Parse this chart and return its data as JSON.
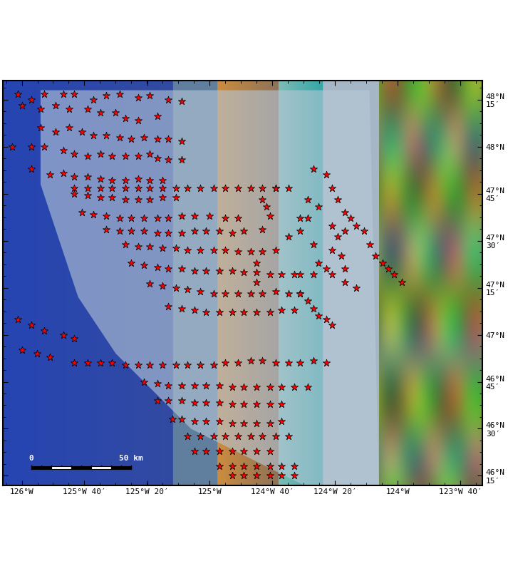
{
  "lon_min": -126.1,
  "lon_max": -123.55,
  "lat_min": 46.2,
  "lat_max": 48.35,
  "xticks": [
    -126,
    -125.667,
    -125.333,
    -125,
    -124.667,
    -124.333,
    -124,
    -123.667
  ],
  "xtick_labels": [
    "126°W",
    "125°W 40′",
    "125°W 20′",
    "125°W",
    "124°W 40′",
    "124°W 20′",
    "124°W",
    "123°W 40′"
  ],
  "yticks": [
    46.25,
    46.5,
    46.75,
    47.0,
    47.25,
    47.5,
    47.75,
    48.0,
    48.25
  ],
  "ytick_labels": [
    "46°N\n15′",
    "46°N\n30′",
    "46°N\n45′",
    "47°N",
    "47°N\n15′",
    "47°N\n30′",
    "47°N\n45′",
    "48°N",
    "48°N\n15′"
  ],
  "background_ocean": "#4a6fa5",
  "background_land": "#8faa7c",
  "star_color_face": "#ff0000",
  "star_color_edge": "#000000",
  "star_size": 8,
  "scalebar_lon": [
    -125.92,
    -125.55
  ],
  "scalebar_lat": 46.34,
  "bubble_plumes": [
    [
      -126.02,
      48.28
    ],
    [
      -125.95,
      48.25
    ],
    [
      -125.88,
      48.28
    ],
    [
      -125.78,
      48.28
    ],
    [
      -125.72,
      48.28
    ],
    [
      -125.62,
      48.25
    ],
    [
      -125.55,
      48.27
    ],
    [
      -125.48,
      48.28
    ],
    [
      -125.38,
      48.26
    ],
    [
      -125.32,
      48.27
    ],
    [
      -125.22,
      48.25
    ],
    [
      -125.15,
      48.24
    ],
    [
      -126.0,
      48.22
    ],
    [
      -125.9,
      48.2
    ],
    [
      -125.82,
      48.22
    ],
    [
      -125.75,
      48.2
    ],
    [
      -125.65,
      48.2
    ],
    [
      -125.58,
      48.18
    ],
    [
      -125.5,
      48.18
    ],
    [
      -125.45,
      48.15
    ],
    [
      -125.38,
      48.14
    ],
    [
      -125.28,
      48.16
    ],
    [
      -125.9,
      48.1
    ],
    [
      -125.82,
      48.08
    ],
    [
      -125.75,
      48.1
    ],
    [
      -125.68,
      48.08
    ],
    [
      -125.62,
      48.06
    ],
    [
      -125.55,
      48.06
    ],
    [
      -125.48,
      48.05
    ],
    [
      -125.42,
      48.04
    ],
    [
      -125.35,
      48.05
    ],
    [
      -125.28,
      48.04
    ],
    [
      -125.22,
      48.04
    ],
    [
      -125.15,
      48.03
    ],
    [
      -126.05,
      48.0
    ],
    [
      -125.95,
      48.0
    ],
    [
      -125.88,
      48.0
    ],
    [
      -125.78,
      47.98
    ],
    [
      -125.72,
      47.96
    ],
    [
      -125.65,
      47.95
    ],
    [
      -125.58,
      47.96
    ],
    [
      -125.52,
      47.95
    ],
    [
      -125.45,
      47.95
    ],
    [
      -125.38,
      47.95
    ],
    [
      -125.32,
      47.96
    ],
    [
      -125.28,
      47.94
    ],
    [
      -125.22,
      47.93
    ],
    [
      -125.15,
      47.93
    ],
    [
      -125.95,
      47.88
    ],
    [
      -125.85,
      47.85
    ],
    [
      -125.78,
      47.86
    ],
    [
      -125.72,
      47.84
    ],
    [
      -125.65,
      47.84
    ],
    [
      -125.58,
      47.83
    ],
    [
      -125.52,
      47.82
    ],
    [
      -125.45,
      47.82
    ],
    [
      -125.38,
      47.83
    ],
    [
      -125.32,
      47.82
    ],
    [
      -125.25,
      47.82
    ],
    [
      -125.72,
      47.75
    ],
    [
      -125.65,
      47.74
    ],
    [
      -125.58,
      47.73
    ],
    [
      -125.52,
      47.73
    ],
    [
      -125.45,
      47.72
    ],
    [
      -125.38,
      47.72
    ],
    [
      -125.32,
      47.72
    ],
    [
      -125.25,
      47.73
    ],
    [
      -125.18,
      47.73
    ],
    [
      -125.68,
      47.65
    ],
    [
      -125.62,
      47.64
    ],
    [
      -125.55,
      47.63
    ],
    [
      -125.48,
      47.62
    ],
    [
      -125.42,
      47.62
    ],
    [
      -125.35,
      47.62
    ],
    [
      -125.28,
      47.62
    ],
    [
      -125.22,
      47.62
    ],
    [
      -125.15,
      47.63
    ],
    [
      -125.08,
      47.63
    ],
    [
      -125.0,
      47.63
    ],
    [
      -124.92,
      47.62
    ],
    [
      -124.85,
      47.62
    ],
    [
      -125.55,
      47.56
    ],
    [
      -125.48,
      47.55
    ],
    [
      -125.42,
      47.55
    ],
    [
      -125.35,
      47.55
    ],
    [
      -125.28,
      47.54
    ],
    [
      -125.22,
      47.54
    ],
    [
      -125.15,
      47.54
    ],
    [
      -125.08,
      47.55
    ],
    [
      -125.02,
      47.55
    ],
    [
      -124.95,
      47.55
    ],
    [
      -124.88,
      47.54
    ],
    [
      -124.82,
      47.55
    ],
    [
      -125.45,
      47.48
    ],
    [
      -125.38,
      47.47
    ],
    [
      -125.32,
      47.47
    ],
    [
      -125.25,
      47.46
    ],
    [
      -125.18,
      47.46
    ],
    [
      -125.12,
      47.45
    ],
    [
      -125.05,
      47.45
    ],
    [
      -124.98,
      47.45
    ],
    [
      -124.92,
      47.45
    ],
    [
      -124.85,
      47.44
    ],
    [
      -124.78,
      47.44
    ],
    [
      -124.72,
      47.44
    ],
    [
      -124.65,
      47.45
    ],
    [
      -125.42,
      47.38
    ],
    [
      -125.35,
      47.37
    ],
    [
      -125.28,
      47.36
    ],
    [
      -125.22,
      47.35
    ],
    [
      -125.15,
      47.35
    ],
    [
      -125.08,
      47.34
    ],
    [
      -125.02,
      47.34
    ],
    [
      -124.95,
      47.34
    ],
    [
      -124.88,
      47.34
    ],
    [
      -124.82,
      47.33
    ],
    [
      -124.75,
      47.33
    ],
    [
      -124.68,
      47.32
    ],
    [
      -124.62,
      47.32
    ],
    [
      -125.32,
      47.27
    ],
    [
      -125.25,
      47.26
    ],
    [
      -125.18,
      47.25
    ],
    [
      -125.12,
      47.24
    ],
    [
      -125.05,
      47.23
    ],
    [
      -124.98,
      47.22
    ],
    [
      -124.92,
      47.22
    ],
    [
      -124.85,
      47.22
    ],
    [
      -124.78,
      47.22
    ],
    [
      -124.72,
      47.22
    ],
    [
      -124.65,
      47.23
    ],
    [
      -124.58,
      47.22
    ],
    [
      -124.52,
      47.22
    ],
    [
      -125.22,
      47.15
    ],
    [
      -125.15,
      47.14
    ],
    [
      -125.08,
      47.13
    ],
    [
      -125.02,
      47.12
    ],
    [
      -124.95,
      47.12
    ],
    [
      -124.88,
      47.12
    ],
    [
      -124.82,
      47.12
    ],
    [
      -124.75,
      47.12
    ],
    [
      -124.68,
      47.12
    ],
    [
      -124.62,
      47.13
    ],
    [
      -124.55,
      47.13
    ],
    [
      -124.75,
      47.38
    ],
    [
      -124.75,
      47.28
    ],
    [
      -124.55,
      47.32
    ],
    [
      -124.72,
      47.56
    ],
    [
      -124.68,
      47.63
    ],
    [
      -124.7,
      47.68
    ],
    [
      -124.72,
      47.72
    ],
    [
      -124.3,
      47.42
    ],
    [
      -124.35,
      47.45
    ],
    [
      -124.28,
      47.35
    ],
    [
      -124.32,
      47.52
    ],
    [
      -124.58,
      47.52
    ],
    [
      -124.52,
      47.62
    ],
    [
      -124.48,
      47.72
    ],
    [
      -124.45,
      47.48
    ],
    [
      -124.42,
      47.38
    ],
    [
      -124.38,
      47.35
    ],
    [
      -126.02,
      47.08
    ],
    [
      -125.95,
      47.05
    ],
    [
      -125.88,
      47.02
    ],
    [
      -125.78,
      47.0
    ],
    [
      -125.72,
      46.98
    ],
    [
      -126.0,
      46.92
    ],
    [
      -125.92,
      46.9
    ],
    [
      -125.85,
      46.88
    ],
    [
      -125.72,
      46.85
    ],
    [
      -125.65,
      46.85
    ],
    [
      -125.58,
      46.85
    ],
    [
      -125.52,
      46.85
    ],
    [
      -125.45,
      46.84
    ],
    [
      -125.38,
      46.84
    ],
    [
      -125.32,
      46.84
    ],
    [
      -125.25,
      46.84
    ],
    [
      -125.18,
      46.84
    ],
    [
      -125.12,
      46.84
    ],
    [
      -125.05,
      46.84
    ],
    [
      -124.98,
      46.84
    ],
    [
      -124.92,
      46.85
    ],
    [
      -124.85,
      46.85
    ],
    [
      -124.78,
      46.86
    ],
    [
      -124.72,
      46.86
    ],
    [
      -124.65,
      46.85
    ],
    [
      -124.58,
      46.85
    ],
    [
      -124.52,
      46.85
    ],
    [
      -124.45,
      46.86
    ],
    [
      -124.38,
      46.85
    ],
    [
      -125.35,
      46.75
    ],
    [
      -125.28,
      46.74
    ],
    [
      -125.22,
      46.73
    ],
    [
      -125.15,
      46.73
    ],
    [
      -125.08,
      46.73
    ],
    [
      -125.02,
      46.73
    ],
    [
      -124.95,
      46.73
    ],
    [
      -124.88,
      46.72
    ],
    [
      -124.82,
      46.72
    ],
    [
      -124.75,
      46.72
    ],
    [
      -124.68,
      46.72
    ],
    [
      -124.62,
      46.72
    ],
    [
      -124.55,
      46.72
    ],
    [
      -124.48,
      46.72
    ],
    [
      -125.28,
      46.65
    ],
    [
      -125.22,
      46.65
    ],
    [
      -125.15,
      46.65
    ],
    [
      -125.08,
      46.64
    ],
    [
      -125.02,
      46.64
    ],
    [
      -124.95,
      46.64
    ],
    [
      -124.88,
      46.63
    ],
    [
      -124.82,
      46.63
    ],
    [
      -124.75,
      46.63
    ],
    [
      -124.68,
      46.63
    ],
    [
      -124.62,
      46.63
    ],
    [
      -125.2,
      46.55
    ],
    [
      -125.15,
      46.55
    ],
    [
      -125.08,
      46.54
    ],
    [
      -125.02,
      46.54
    ],
    [
      -124.95,
      46.54
    ],
    [
      -124.88,
      46.53
    ],
    [
      -124.82,
      46.53
    ],
    [
      -124.75,
      46.53
    ],
    [
      -124.68,
      46.53
    ],
    [
      -124.62,
      46.54
    ],
    [
      -125.12,
      46.46
    ],
    [
      -125.05,
      46.46
    ],
    [
      -124.98,
      46.46
    ],
    [
      -124.92,
      46.46
    ],
    [
      -124.85,
      46.46
    ],
    [
      -124.78,
      46.46
    ],
    [
      -124.72,
      46.46
    ],
    [
      -124.65,
      46.46
    ],
    [
      -124.58,
      46.46
    ],
    [
      -125.08,
      46.38
    ],
    [
      -125.02,
      46.38
    ],
    [
      -124.95,
      46.38
    ],
    [
      -124.88,
      46.38
    ],
    [
      -124.82,
      46.38
    ],
    [
      -124.75,
      46.38
    ],
    [
      -124.68,
      46.38
    ],
    [
      -124.95,
      46.3
    ],
    [
      -124.88,
      46.3
    ],
    [
      -124.82,
      46.3
    ],
    [
      -124.75,
      46.3
    ],
    [
      -124.68,
      46.3
    ],
    [
      -124.62,
      46.3
    ],
    [
      -124.55,
      46.3
    ],
    [
      -124.88,
      46.25
    ],
    [
      -124.82,
      46.25
    ],
    [
      -124.75,
      46.25
    ],
    [
      -124.68,
      46.25
    ],
    [
      -124.62,
      46.25
    ],
    [
      -124.55,
      46.25
    ],
    [
      -124.65,
      47.78
    ],
    [
      -124.58,
      47.78
    ],
    [
      -124.52,
      47.55
    ],
    [
      -124.48,
      47.62
    ],
    [
      -124.42,
      47.68
    ],
    [
      -124.52,
      47.32
    ],
    [
      -124.45,
      47.32
    ],
    [
      -124.35,
      47.32
    ],
    [
      -124.28,
      47.28
    ],
    [
      -124.22,
      47.25
    ],
    [
      -124.28,
      47.55
    ],
    [
      -124.35,
      47.58
    ],
    [
      -124.45,
      47.88
    ],
    [
      -124.38,
      47.85
    ],
    [
      -124.35,
      47.78
    ],
    [
      -124.32,
      47.72
    ],
    [
      -124.28,
      47.65
    ],
    [
      -124.25,
      47.62
    ],
    [
      -124.22,
      47.58
    ],
    [
      -124.18,
      47.55
    ],
    [
      -124.15,
      47.48
    ],
    [
      -124.12,
      47.42
    ],
    [
      -124.08,
      47.38
    ],
    [
      -124.05,
      47.35
    ],
    [
      -124.02,
      47.32
    ],
    [
      -123.98,
      47.28
    ],
    [
      -124.52,
      47.22
    ],
    [
      -124.48,
      47.18
    ],
    [
      -124.45,
      47.14
    ],
    [
      -124.42,
      47.1
    ],
    [
      -124.38,
      47.08
    ],
    [
      -124.35,
      47.05
    ],
    [
      -125.65,
      47.78
    ],
    [
      -125.72,
      47.78
    ],
    [
      -125.58,
      47.78
    ],
    [
      -125.52,
      47.78
    ],
    [
      -125.45,
      47.78
    ],
    [
      -125.38,
      47.78
    ],
    [
      -125.32,
      47.78
    ],
    [
      -125.25,
      47.78
    ],
    [
      -125.18,
      47.78
    ],
    [
      -125.12,
      47.78
    ],
    [
      -125.05,
      47.78
    ],
    [
      -124.98,
      47.78
    ],
    [
      -124.92,
      47.78
    ],
    [
      -124.85,
      47.78
    ],
    [
      -124.78,
      47.78
    ],
    [
      -124.72,
      47.78
    ],
    [
      -124.65,
      47.78
    ]
  ]
}
